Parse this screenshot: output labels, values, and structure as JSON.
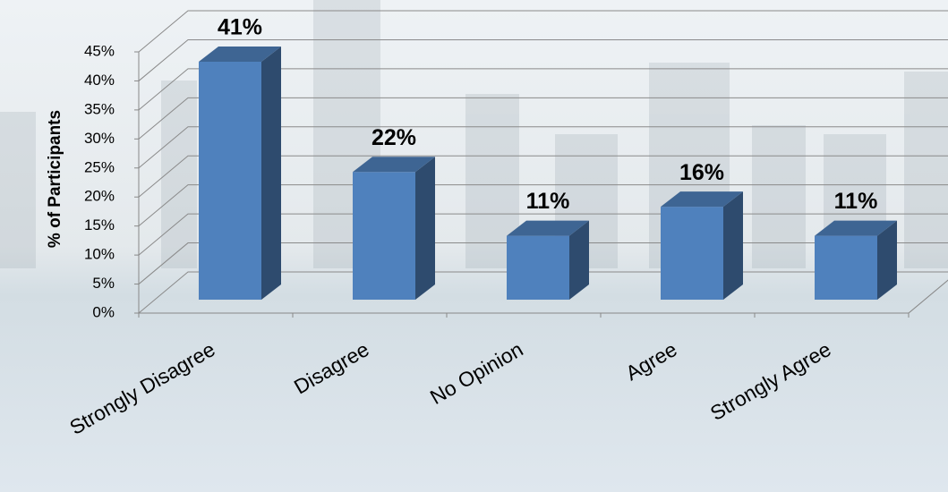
{
  "chart_data": {
    "type": "bar3d",
    "y_label": "% of Participants",
    "categories": [
      "Strongly Disagree",
      "Disagree",
      "No Opinion",
      "Agree",
      "Strongly Agree"
    ],
    "values": [
      41,
      22,
      11,
      16,
      11
    ],
    "value_labels": [
      "41%",
      "22%",
      "11%",
      "16%",
      "11%"
    ],
    "color": "#4f81bd",
    "ylim": [
      0,
      45
    ],
    "yticks": [
      {
        "value": 0,
        "label": "0%"
      },
      {
        "value": 5,
        "label": "5%"
      },
      {
        "value": 10,
        "label": "10%"
      },
      {
        "value": 15,
        "label": "15%"
      },
      {
        "value": 20,
        "label": "20%"
      },
      {
        "value": 25,
        "label": "25%"
      },
      {
        "value": 30,
        "label": "30%"
      },
      {
        "value": 35,
        "label": "35%"
      },
      {
        "value": 40,
        "label": "40%"
      },
      {
        "value": 45,
        "label": "45%"
      }
    ],
    "grid": true
  }
}
